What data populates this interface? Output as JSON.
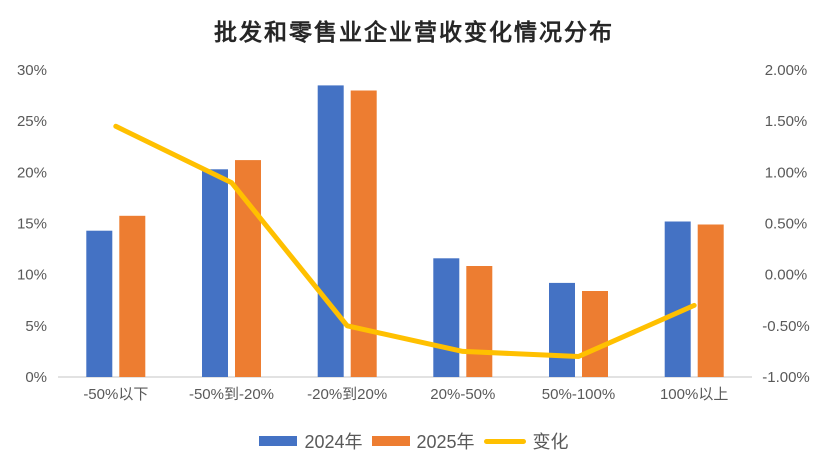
{
  "colors": {
    "series_2024": "#4472C4",
    "series_2025": "#ED7D31",
    "line_change": "#FFC000",
    "axis_text": "#595959",
    "axis_line": "#D9D9D9",
    "title_text": "#262626",
    "background": "#FFFFFF"
  },
  "chart_data": {
    "type": "bar",
    "combo": "grouped bars + line on secondary axis",
    "title": "批发和零售业企业营收变化情况分布",
    "categories": [
      "-50%以下",
      "-50%到-20%",
      "-20%到20%",
      "20%-50%",
      "50%-100%",
      "100%以上"
    ],
    "series": [
      {
        "name": "2024年",
        "type": "bar",
        "axis": "left",
        "color": "#4472C4",
        "values": [
          14.3,
          20.3,
          28.5,
          11.6,
          9.2,
          15.2
        ]
      },
      {
        "name": "2025年",
        "type": "bar",
        "axis": "left",
        "color": "#ED7D31",
        "values": [
          15.75,
          21.2,
          28.0,
          10.85,
          8.4,
          14.9
        ]
      },
      {
        "name": "变化",
        "type": "line",
        "axis": "right",
        "color": "#FFC000",
        "values": [
          1.45,
          0.9,
          -0.5,
          -0.75,
          -0.8,
          -0.3
        ]
      }
    ],
    "left_axis": {
      "min": 0,
      "max": 30,
      "tick_values": [
        0,
        5,
        10,
        15,
        20,
        25,
        30
      ],
      "tick_labels": [
        "0%",
        "5%",
        "10%",
        "15%",
        "20%",
        "25%",
        "30%"
      ]
    },
    "right_axis": {
      "min": -1.0,
      "max": 2.0,
      "tick_values": [
        -1.0,
        -0.5,
        0.0,
        0.5,
        1.0,
        1.5,
        2.0
      ],
      "tick_labels": [
        "-1.00%",
        "-0.50%",
        "0.00%",
        "0.50%",
        "1.00%",
        "1.50%",
        "2.00%"
      ]
    },
    "grid": false,
    "legend_position": "bottom"
  }
}
